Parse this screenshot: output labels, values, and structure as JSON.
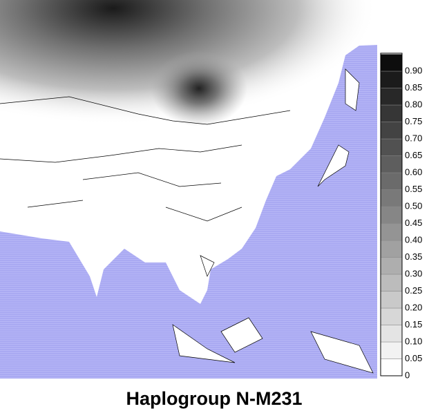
{
  "title": "Haplogroup N-M231",
  "legend": {
    "ticks": [
      0,
      0.05,
      {
        "value": 0.1,
        "label": "0.10"
      },
      0.15,
      {
        "value": 0.2,
        "label": "0.20"
      },
      0.25,
      {
        "value": 0.3,
        "label": "0.30"
      },
      0.35,
      {
        "value": 0.4,
        "label": "0.40"
      },
      0.45,
      {
        "value": 0.5,
        "label": "0.50"
      },
      0.55,
      {
        "value": 0.6,
        "label": "0.60"
      },
      0.65,
      {
        "value": 0.7,
        "label": "0.70"
      },
      0.75,
      {
        "value": 0.8,
        "label": "0.80"
      },
      0.85,
      {
        "value": 0.9,
        "label": "0.90"
      }
    ]
  }
}
